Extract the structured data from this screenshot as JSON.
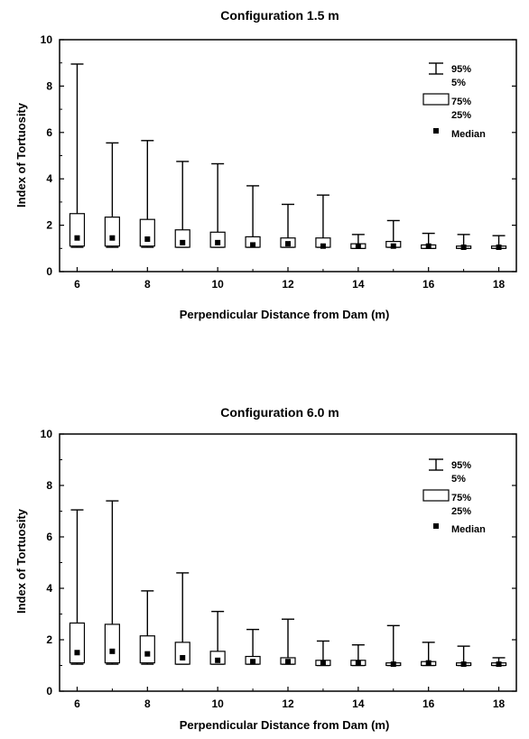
{
  "chart_data": [
    {
      "type": "box",
      "title": "Configuration 1.5 m",
      "xlabel": "Perpendicular Distance from Dam (m)",
      "ylabel": "Index of Tortuosity",
      "xlim": [
        5.5,
        18.5
      ],
      "ylim": [
        0,
        10
      ],
      "xticks": [
        "6",
        "8",
        "10",
        "12",
        "14",
        "16",
        "18"
      ],
      "yticks": [
        "0",
        "2",
        "4",
        "6",
        "8",
        "10"
      ],
      "legend": {
        "whisker_labels": [
          "95%",
          "5%"
        ],
        "box_labels": [
          "75%",
          "25%"
        ],
        "median_label": "Median",
        "placement": "top-right"
      },
      "boxes": [
        {
          "x": 6,
          "p5": 1.05,
          "p25": 1.1,
          "median": 1.45,
          "p75": 2.5,
          "p95": 8.95
        },
        {
          "x": 7,
          "p5": 1.05,
          "p25": 1.1,
          "median": 1.45,
          "p75": 2.35,
          "p95": 5.55
        },
        {
          "x": 8,
          "p5": 1.05,
          "p25": 1.1,
          "median": 1.4,
          "p75": 2.25,
          "p95": 5.65
        },
        {
          "x": 9,
          "p5": 1.05,
          "p25": 1.05,
          "median": 1.25,
          "p75": 1.8,
          "p95": 4.75
        },
        {
          "x": 10,
          "p5": 1.05,
          "p25": 1.05,
          "median": 1.25,
          "p75": 1.7,
          "p95": 4.65
        },
        {
          "x": 11,
          "p5": 1.05,
          "p25": 1.05,
          "median": 1.15,
          "p75": 1.5,
          "p95": 3.7
        },
        {
          "x": 12,
          "p5": 1.05,
          "p25": 1.05,
          "median": 1.2,
          "p75": 1.45,
          "p95": 2.9
        },
        {
          "x": 13,
          "p5": 1.05,
          "p25": 1.05,
          "median": 1.1,
          "p75": 1.45,
          "p95": 3.3
        },
        {
          "x": 14,
          "p5": 1.0,
          "p25": 1.0,
          "median": 1.1,
          "p75": 1.2,
          "p95": 1.6
        },
        {
          "x": 15,
          "p5": 1.05,
          "p25": 1.05,
          "median": 1.1,
          "p75": 1.3,
          "p95": 2.2
        },
        {
          "x": 16,
          "p5": 1.0,
          "p25": 1.0,
          "median": 1.1,
          "p75": 1.15,
          "p95": 1.65
        },
        {
          "x": 17,
          "p5": 1.0,
          "p25": 1.0,
          "median": 1.05,
          "p75": 1.1,
          "p95": 1.6
        },
        {
          "x": 18,
          "p5": 1.0,
          "p25": 1.0,
          "median": 1.05,
          "p75": 1.1,
          "p95": 1.55
        }
      ]
    },
    {
      "type": "box",
      "title": "Configuration 6.0 m",
      "xlabel": "Perpendicular Distance from Dam (m)",
      "ylabel": "Index of Tortuosity",
      "xlim": [
        5.5,
        18.5
      ],
      "ylim": [
        0,
        10
      ],
      "xticks": [
        "6",
        "8",
        "10",
        "12",
        "14",
        "16",
        "18"
      ],
      "yticks": [
        "0",
        "2",
        "4",
        "6",
        "8",
        "10"
      ],
      "legend": {
        "whisker_labels": [
          "95%",
          "5%"
        ],
        "box_labels": [
          "75%",
          "25%"
        ],
        "median_label": "Median",
        "placement": "top-right"
      },
      "boxes": [
        {
          "x": 6,
          "p5": 1.05,
          "p25": 1.1,
          "median": 1.5,
          "p75": 2.65,
          "p95": 7.05
        },
        {
          "x": 7,
          "p5": 1.05,
          "p25": 1.1,
          "median": 1.55,
          "p75": 2.6,
          "p95": 7.4
        },
        {
          "x": 8,
          "p5": 1.05,
          "p25": 1.1,
          "median": 1.45,
          "p75": 2.15,
          "p95": 3.9
        },
        {
          "x": 9,
          "p5": 1.05,
          "p25": 1.05,
          "median": 1.3,
          "p75": 1.9,
          "p95": 4.6
        },
        {
          "x": 10,
          "p5": 1.05,
          "p25": 1.05,
          "median": 1.2,
          "p75": 1.55,
          "p95": 3.1
        },
        {
          "x": 11,
          "p5": 1.05,
          "p25": 1.05,
          "median": 1.15,
          "p75": 1.35,
          "p95": 2.4
        },
        {
          "x": 12,
          "p5": 1.05,
          "p25": 1.05,
          "median": 1.15,
          "p75": 1.3,
          "p95": 2.8
        },
        {
          "x": 13,
          "p5": 1.0,
          "p25": 1.0,
          "median": 1.1,
          "p75": 1.2,
          "p95": 1.95
        },
        {
          "x": 14,
          "p5": 1.0,
          "p25": 1.0,
          "median": 1.1,
          "p75": 1.2,
          "p95": 1.8
        },
        {
          "x": 15,
          "p5": 1.0,
          "p25": 1.0,
          "median": 1.05,
          "p75": 1.1,
          "p95": 2.55
        },
        {
          "x": 16,
          "p5": 1.0,
          "p25": 1.0,
          "median": 1.1,
          "p75": 1.15,
          "p95": 1.9
        },
        {
          "x": 17,
          "p5": 1.0,
          "p25": 1.0,
          "median": 1.05,
          "p75": 1.1,
          "p95": 1.75
        },
        {
          "x": 18,
          "p5": 1.0,
          "p25": 1.0,
          "median": 1.05,
          "p75": 1.1,
          "p95": 1.3
        }
      ]
    }
  ]
}
